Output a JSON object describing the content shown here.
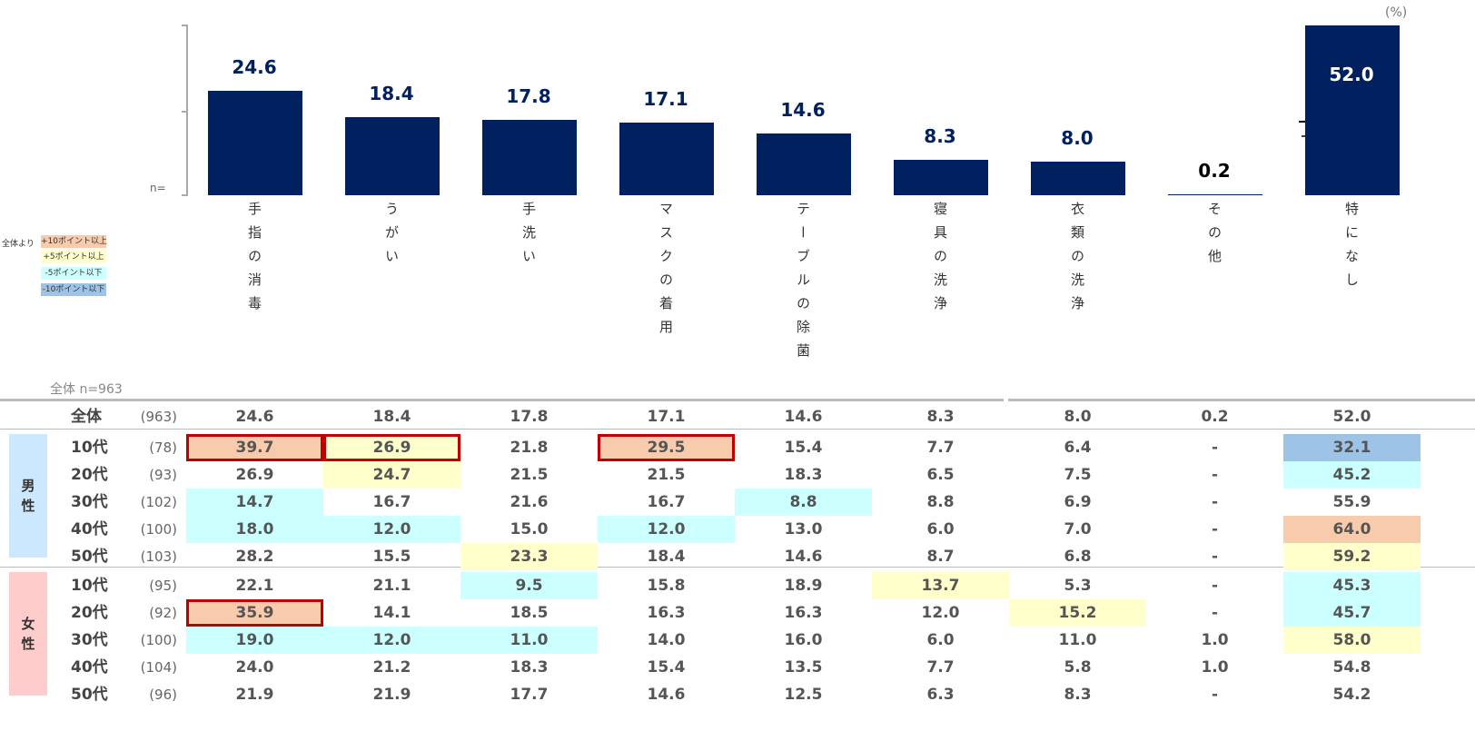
{
  "chart_data": {
    "type": "bar",
    "unit_label": "(%)",
    "n_label": "n=",
    "categories": [
      "手指の消毒",
      "うがい",
      "手洗い",
      "マスクの着用",
      "テーブルの除菌",
      "寝具の洗浄",
      "衣類の洗浄",
      "その他",
      "特になし"
    ],
    "values": [
      24.6,
      18.4,
      17.8,
      17.1,
      14.6,
      8.3,
      8.0,
      0.2,
      52.0
    ],
    "value_labels": [
      "24.6",
      "18.4",
      "17.8",
      "17.1",
      "14.6",
      "8.3",
      "8.0",
      "0.2",
      "52.0"
    ],
    "axis_break_on": "特になし"
  },
  "legend": {
    "title": "全体より",
    "items": [
      {
        "label": "+10ポイント以上",
        "color": "#F8CBAD"
      },
      {
        "label": "+5ポイント以上",
        "color": "#FFFFCC"
      },
      {
        "label": "-5ポイント以下",
        "color": "#CCFFFF"
      },
      {
        "label": "-10ポイント以下",
        "color": "#9DC3E6"
      }
    ]
  },
  "colors": {
    "bar": "#002060",
    "o": "#F8CBAD",
    "y": "#FFFFCC",
    "c": "#CCFFFF",
    "b": "#9DC3E6",
    "box": "#C00000",
    "male": "#CCE8FF",
    "female": "#FFCCCC"
  },
  "table": {
    "caption": "全体 n=963",
    "groups": {
      "male": "男性",
      "female": "女性"
    },
    "rows": [
      {
        "label": "全体",
        "n": "(963)",
        "values": [
          "24.6",
          "18.4",
          "17.8",
          "17.1",
          "14.6",
          "8.3",
          "8.0",
          "0.2",
          "52.0"
        ],
        "hl": [
          "",
          "",
          "",
          "",
          "",
          "",
          "",
          "",
          ""
        ],
        "box": []
      },
      {
        "label": "10代",
        "n": "(78)",
        "values": [
          "39.7",
          "26.9",
          "21.8",
          "29.5",
          "15.4",
          "7.7",
          "6.4",
          "-",
          "32.1"
        ],
        "hl": [
          "o",
          "y",
          "",
          "o",
          "",
          "",
          "",
          "",
          "b"
        ],
        "box": [
          0,
          1,
          3
        ]
      },
      {
        "label": "20代",
        "n": "(93)",
        "values": [
          "26.9",
          "24.7",
          "21.5",
          "21.5",
          "18.3",
          "6.5",
          "7.5",
          "-",
          "45.2"
        ],
        "hl": [
          "",
          "y",
          "",
          "",
          "",
          "",
          "",
          "",
          "c"
        ],
        "box": []
      },
      {
        "label": "30代",
        "n": "(102)",
        "values": [
          "14.7",
          "16.7",
          "21.6",
          "16.7",
          "8.8",
          "8.8",
          "6.9",
          "-",
          "55.9"
        ],
        "hl": [
          "c",
          "",
          "",
          "",
          "c",
          "",
          "",
          "",
          ""
        ],
        "box": []
      },
      {
        "label": "40代",
        "n": "(100)",
        "values": [
          "18.0",
          "12.0",
          "15.0",
          "12.0",
          "13.0",
          "6.0",
          "7.0",
          "-",
          "64.0"
        ],
        "hl": [
          "c",
          "c",
          "",
          "c",
          "",
          "",
          "",
          "",
          "o"
        ],
        "box": []
      },
      {
        "label": "50代",
        "n": "(103)",
        "values": [
          "28.2",
          "15.5",
          "23.3",
          "18.4",
          "14.6",
          "8.7",
          "6.8",
          "-",
          "59.2"
        ],
        "hl": [
          "",
          "",
          "y",
          "",
          "",
          "",
          "",
          "",
          "y"
        ],
        "box": []
      },
      {
        "label": "10代",
        "n": "(95)",
        "values": [
          "22.1",
          "21.1",
          "9.5",
          "15.8",
          "18.9",
          "13.7",
          "5.3",
          "-",
          "45.3"
        ],
        "hl": [
          "",
          "",
          "c",
          "",
          "",
          "y",
          "",
          "",
          "c"
        ],
        "box": []
      },
      {
        "label": "20代",
        "n": "(92)",
        "values": [
          "35.9",
          "14.1",
          "18.5",
          "16.3",
          "16.3",
          "12.0",
          "15.2",
          "-",
          "45.7"
        ],
        "hl": [
          "o",
          "",
          "",
          "",
          "",
          "",
          "y",
          "",
          "c"
        ],
        "box": [
          0
        ]
      },
      {
        "label": "30代",
        "n": "(100)",
        "values": [
          "19.0",
          "12.0",
          "11.0",
          "14.0",
          "16.0",
          "6.0",
          "11.0",
          "1.0",
          "58.0"
        ],
        "hl": [
          "c",
          "c",
          "c",
          "",
          "",
          "",
          "",
          "",
          "y"
        ],
        "box": []
      },
      {
        "label": "40代",
        "n": "(104)",
        "values": [
          "24.0",
          "21.2",
          "18.3",
          "15.4",
          "13.5",
          "7.7",
          "5.8",
          "1.0",
          "54.8"
        ],
        "hl": [
          "",
          "",
          "",
          "",
          "",
          "",
          "",
          "",
          ""
        ],
        "box": []
      },
      {
        "label": "50代",
        "n": "(96)",
        "values": [
          "21.9",
          "21.9",
          "17.7",
          "14.6",
          "12.5",
          "6.3",
          "8.3",
          "-",
          "54.2"
        ],
        "hl": [
          "",
          "",
          "",
          "",
          "",
          "",
          "",
          "",
          ""
        ],
        "box": []
      }
    ]
  }
}
